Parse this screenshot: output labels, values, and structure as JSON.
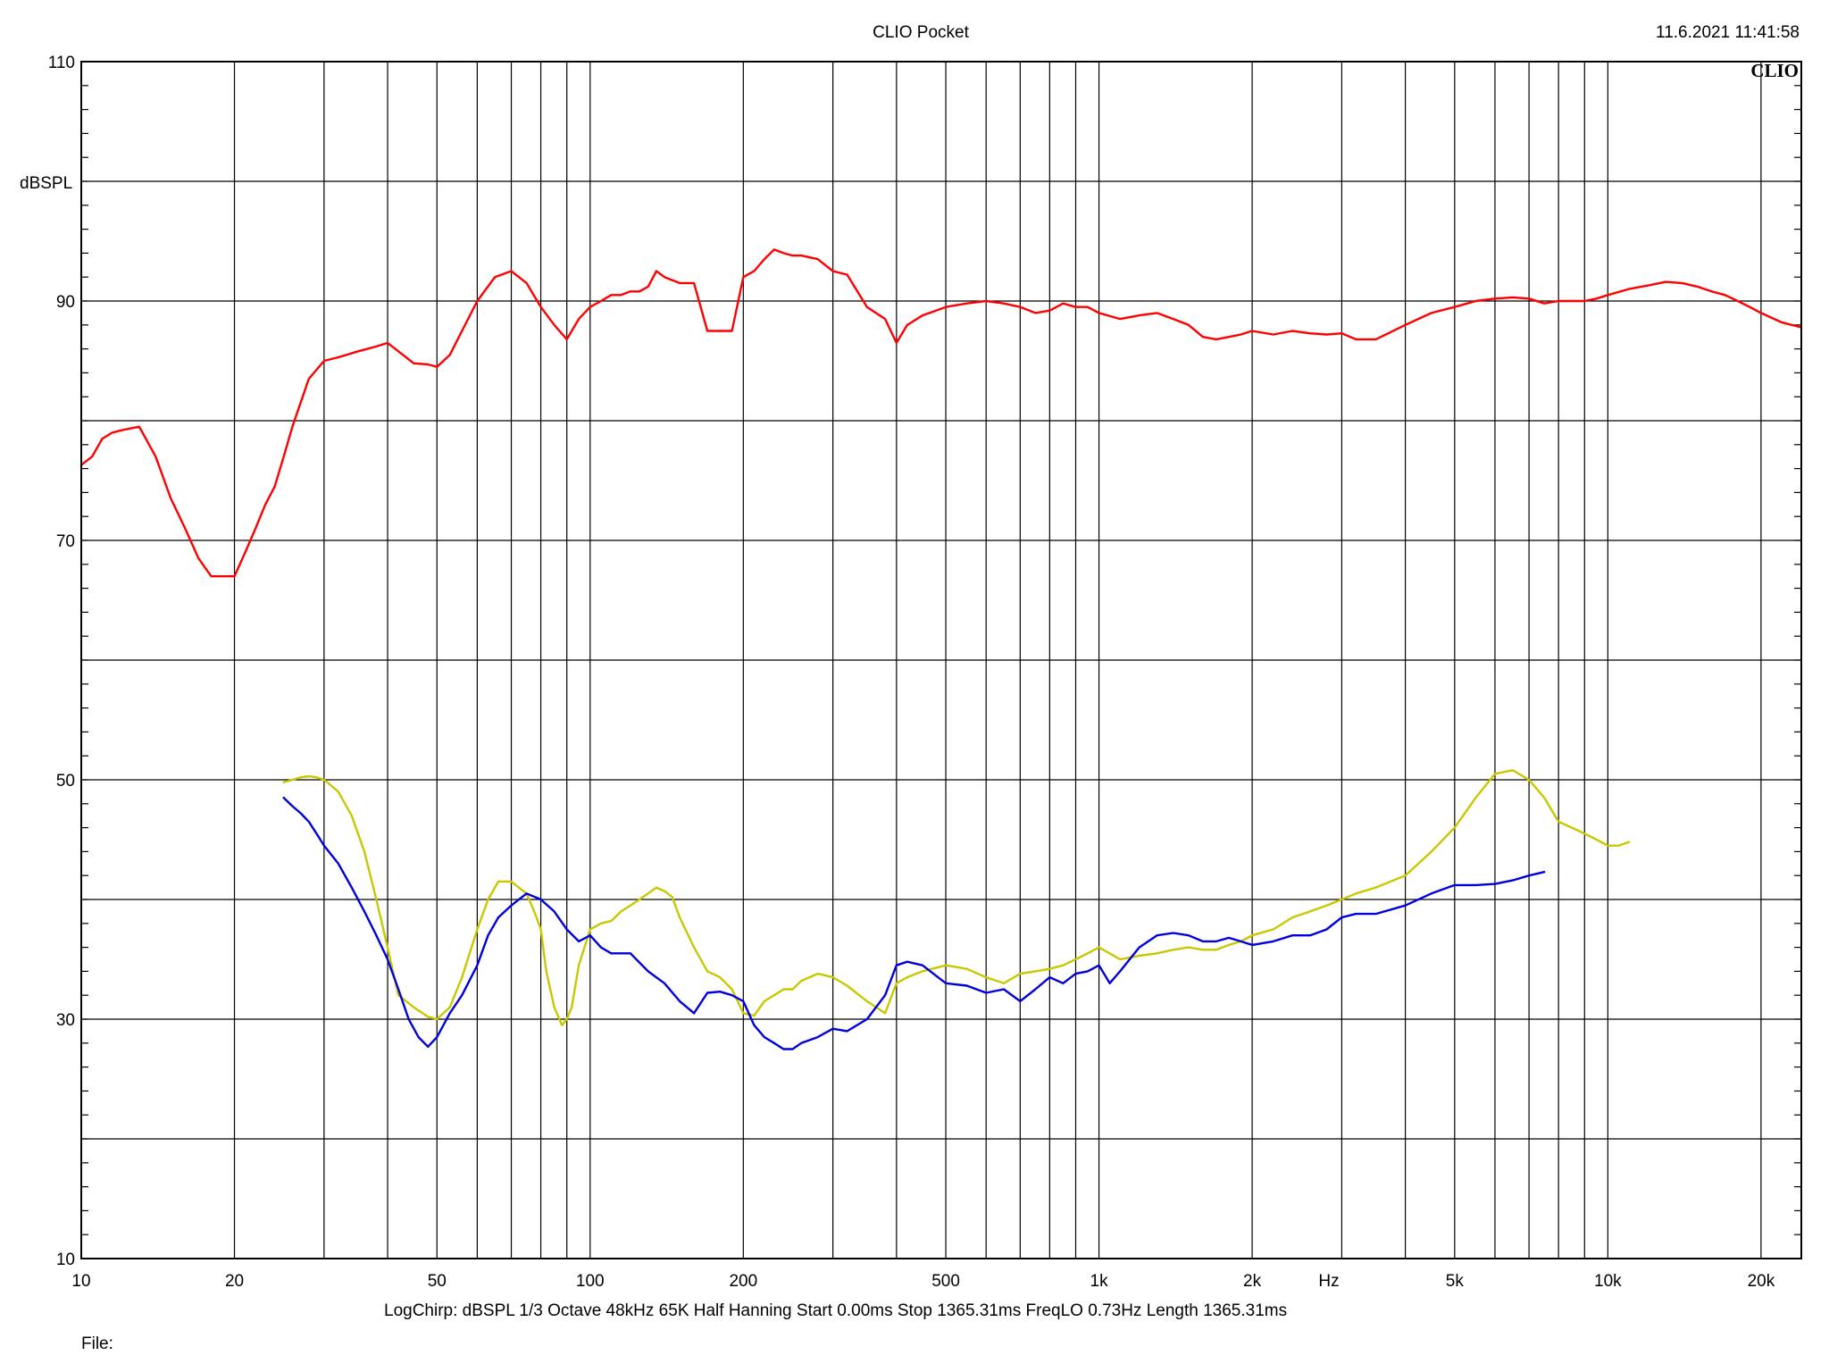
{
  "header": {
    "title": "CLIO Pocket",
    "timestamp": "11.6.2021 11:41:58",
    "brand": "CLIO"
  },
  "footer": {
    "settings": "LogChirp:  dBSPL   1/3 Octave   48kHz   65K   Half Hanning   Start 0.00ms    Stop 1365.31ms    FreqLO 0.73Hz    Length 1365.31ms",
    "file_label": "File:"
  },
  "chart_data": {
    "type": "line",
    "title": "CLIO Pocket",
    "xlabel": "Hz",
    "ylabel": "dBSPL",
    "xscale": "log",
    "xlim": [
      10,
      24000
    ],
    "ylim": [
      10,
      110
    ],
    "grid": true,
    "x_ticks": [
      {
        "value": 10,
        "label": "10"
      },
      {
        "value": 20,
        "label": "20"
      },
      {
        "value": 50,
        "label": "50"
      },
      {
        "value": 100,
        "label": "100"
      },
      {
        "value": 200,
        "label": "200"
      },
      {
        "value": 500,
        "label": "500"
      },
      {
        "value": 1000,
        "label": "1k"
      },
      {
        "value": 2000,
        "label": "2k"
      },
      {
        "value": 5000,
        "label": "5k"
      },
      {
        "value": 10000,
        "label": "10k"
      },
      {
        "value": 20000,
        "label": "20k"
      }
    ],
    "y_ticks": [
      {
        "value": 10,
        "label": "10"
      },
      {
        "value": 30,
        "label": "30"
      },
      {
        "value": 50,
        "label": "50"
      },
      {
        "value": 70,
        "label": "70"
      },
      {
        "value": 90,
        "label": "90"
      },
      {
        "value": 110,
        "label": "110"
      }
    ],
    "series": [
      {
        "color": "#ff0000",
        "x": [
          10,
          10.5,
          11,
          11.5,
          12,
          13,
          14,
          15,
          16,
          17,
          18,
          19,
          20,
          21,
          22,
          23,
          24,
          25,
          26,
          28,
          30,
          32,
          35,
          38,
          40,
          42,
          45,
          48,
          50,
          53,
          56,
          60,
          65,
          70,
          75,
          80,
          85,
          90,
          95,
          100,
          105,
          110,
          115,
          120,
          125,
          130,
          135,
          140,
          150,
          160,
          170,
          180,
          190,
          200,
          210,
          220,
          230,
          240,
          250,
          260,
          280,
          300,
          320,
          350,
          380,
          400,
          420,
          450,
          500,
          550,
          600,
          650,
          700,
          750,
          800,
          850,
          900,
          950,
          1000,
          1100,
          1200,
          1300,
          1400,
          1500,
          1600,
          1700,
          1800,
          1900,
          2000,
          2200,
          2400,
          2600,
          2800,
          3000,
          3200,
          3500,
          4000,
          4500,
          5000,
          5500,
          6000,
          6500,
          7000,
          7500,
          8000,
          8500,
          9000,
          9500,
          10000,
          11000,
          12000,
          13000,
          14000,
          15000,
          16000,
          17000,
          18000,
          19000,
          20000,
          22000,
          24000
        ],
        "y": [
          76.3,
          77,
          78.5,
          79,
          79.2,
          79.5,
          77,
          73.5,
          71,
          68.5,
          67,
          67,
          67,
          69,
          71,
          73,
          74.5,
          77,
          79.5,
          83.5,
          85,
          85.3,
          85.8,
          86.2,
          86.5,
          85.8,
          84.8,
          84.7,
          84.5,
          85.5,
          87.5,
          90,
          92,
          92.5,
          91.5,
          89.5,
          88,
          86.8,
          88.5,
          89.5,
          90,
          90.5,
          90.5,
          90.8,
          90.8,
          91.2,
          92.5,
          92,
          91.5,
          91.5,
          87.5,
          87.5,
          87.5,
          92,
          92.5,
          93.5,
          94.3,
          94,
          93.8,
          93.8,
          93.5,
          92.5,
          92.2,
          89.5,
          88.5,
          86.5,
          88,
          88.8,
          89.5,
          89.8,
          90,
          89.8,
          89.5,
          89,
          89.2,
          89.8,
          89.5,
          89.5,
          89,
          88.5,
          88.8,
          89,
          88.5,
          88,
          87,
          86.8,
          87,
          87.2,
          87.5,
          87.2,
          87.5,
          87.3,
          87.2,
          87.3,
          86.8,
          86.8,
          88,
          89,
          89.5,
          90,
          90.2,
          90.3,
          90.2,
          89.8,
          90,
          90,
          90,
          90.2,
          90.5,
          91,
          91.3,
          91.6,
          91.5,
          91.2,
          90.8,
          90.5,
          90.0,
          89.5,
          89.0,
          88.2,
          87.8
        ]
      },
      {
        "color": "#c8c800",
        "x": [
          25,
          26,
          27,
          28,
          29,
          30,
          31,
          32,
          34,
          36,
          38,
          40,
          42,
          45,
          48,
          50,
          53,
          56,
          60,
          63,
          66,
          70,
          75,
          78,
          80,
          82,
          85,
          88,
          90,
          92,
          95,
          100,
          105,
          110,
          115,
          120,
          125,
          130,
          135,
          140,
          145,
          150,
          160,
          170,
          180,
          190,
          200,
          210,
          220,
          230,
          240,
          250,
          260,
          280,
          300,
          320,
          350,
          380,
          400,
          420,
          450,
          500,
          550,
          600,
          650,
          700,
          750,
          800,
          850,
          900,
          950,
          1000,
          1100,
          1200,
          1300,
          1400,
          1500,
          1600,
          1700,
          1800,
          1900,
          2000,
          2200,
          2400,
          2600,
          2800,
          3000,
          3200,
          3500,
          4000,
          4500,
          5000,
          5500,
          6000,
          6500,
          7000,
          7500,
          8000,
          8500,
          9000,
          9500,
          10000,
          10500,
          11000
        ],
        "y": [
          49.8,
          50,
          50.2,
          50.3,
          50.2,
          50,
          49.5,
          49,
          47,
          44,
          40,
          36,
          32,
          31,
          30.2,
          30,
          31,
          33.5,
          37.5,
          40,
          41.5,
          41.5,
          40.5,
          38.8,
          37.5,
          34,
          31,
          29.5,
          30,
          31,
          34.5,
          37.5,
          38,
          38.2,
          39,
          39.5,
          40,
          40.5,
          41,
          40.7,
          40.2,
          38.5,
          36,
          34,
          33.5,
          32.5,
          30.5,
          30.3,
          31.5,
          32,
          32.5,
          32.5,
          33.2,
          33.8,
          33.5,
          32.8,
          31.5,
          30.5,
          33,
          33.5,
          34,
          34.5,
          34.2,
          33.5,
          33,
          33.8,
          34,
          34.2,
          34.5,
          35,
          35.5,
          36,
          35,
          35.3,
          35.5,
          35.8,
          36,
          35.8,
          35.8,
          36.2,
          36.5,
          37,
          37.5,
          38.5,
          39,
          39.5,
          40,
          40.5,
          41,
          42,
          44,
          46,
          48.5,
          50.5,
          50.8,
          50,
          48.5,
          46.5,
          46,
          45.5,
          45,
          44.5,
          44.5,
          44.8
        ]
      },
      {
        "color": "#0000dd",
        "x": [
          25,
          26,
          27,
          28,
          29,
          30,
          32,
          34,
          36,
          38,
          40,
          42,
          44,
          46,
          48,
          50,
          53,
          56,
          60,
          63,
          66,
          70,
          75,
          80,
          85,
          90,
          95,
          100,
          105,
          110,
          115,
          120,
          130,
          140,
          150,
          160,
          170,
          180,
          190,
          200,
          210,
          220,
          230,
          240,
          250,
          260,
          280,
          300,
          320,
          350,
          380,
          400,
          420,
          450,
          500,
          550,
          600,
          650,
          700,
          750,
          800,
          850,
          900,
          950,
          1000,
          1050,
          1100,
          1200,
          1300,
          1400,
          1500,
          1600,
          1700,
          1800,
          1900,
          2000,
          2200,
          2400,
          2600,
          2800,
          3000,
          3200,
          3500,
          4000,
          4500,
          5000,
          5500,
          6000,
          6500,
          7000,
          7500
        ],
        "y": [
          48.5,
          47.8,
          47.2,
          46.5,
          45.5,
          44.5,
          43,
          41,
          39,
          37,
          35,
          32.5,
          30,
          28.5,
          27.7,
          28.5,
          30.5,
          32,
          34.5,
          37,
          38.5,
          39.5,
          40.5,
          40,
          39,
          37.5,
          36.5,
          37,
          36,
          35.5,
          35.5,
          35.5,
          34,
          33,
          31.5,
          30.5,
          32.2,
          32.3,
          32,
          31.5,
          29.5,
          28.5,
          28,
          27.5,
          27.5,
          28,
          28.5,
          29.2,
          29,
          30,
          32,
          34.5,
          34.8,
          34.5,
          33,
          32.8,
          32.2,
          32.5,
          31.5,
          32.5,
          33.5,
          33,
          33.8,
          34,
          34.5,
          33,
          34,
          36,
          37,
          37.2,
          37,
          36.5,
          36.5,
          36.8,
          36.5,
          36.2,
          36.5,
          37,
          37,
          37.5,
          38.5,
          38.8,
          38.8,
          39.5,
          40.5,
          41.2,
          41.2,
          41.3,
          41.6,
          42,
          42.3
        ]
      }
    ]
  }
}
